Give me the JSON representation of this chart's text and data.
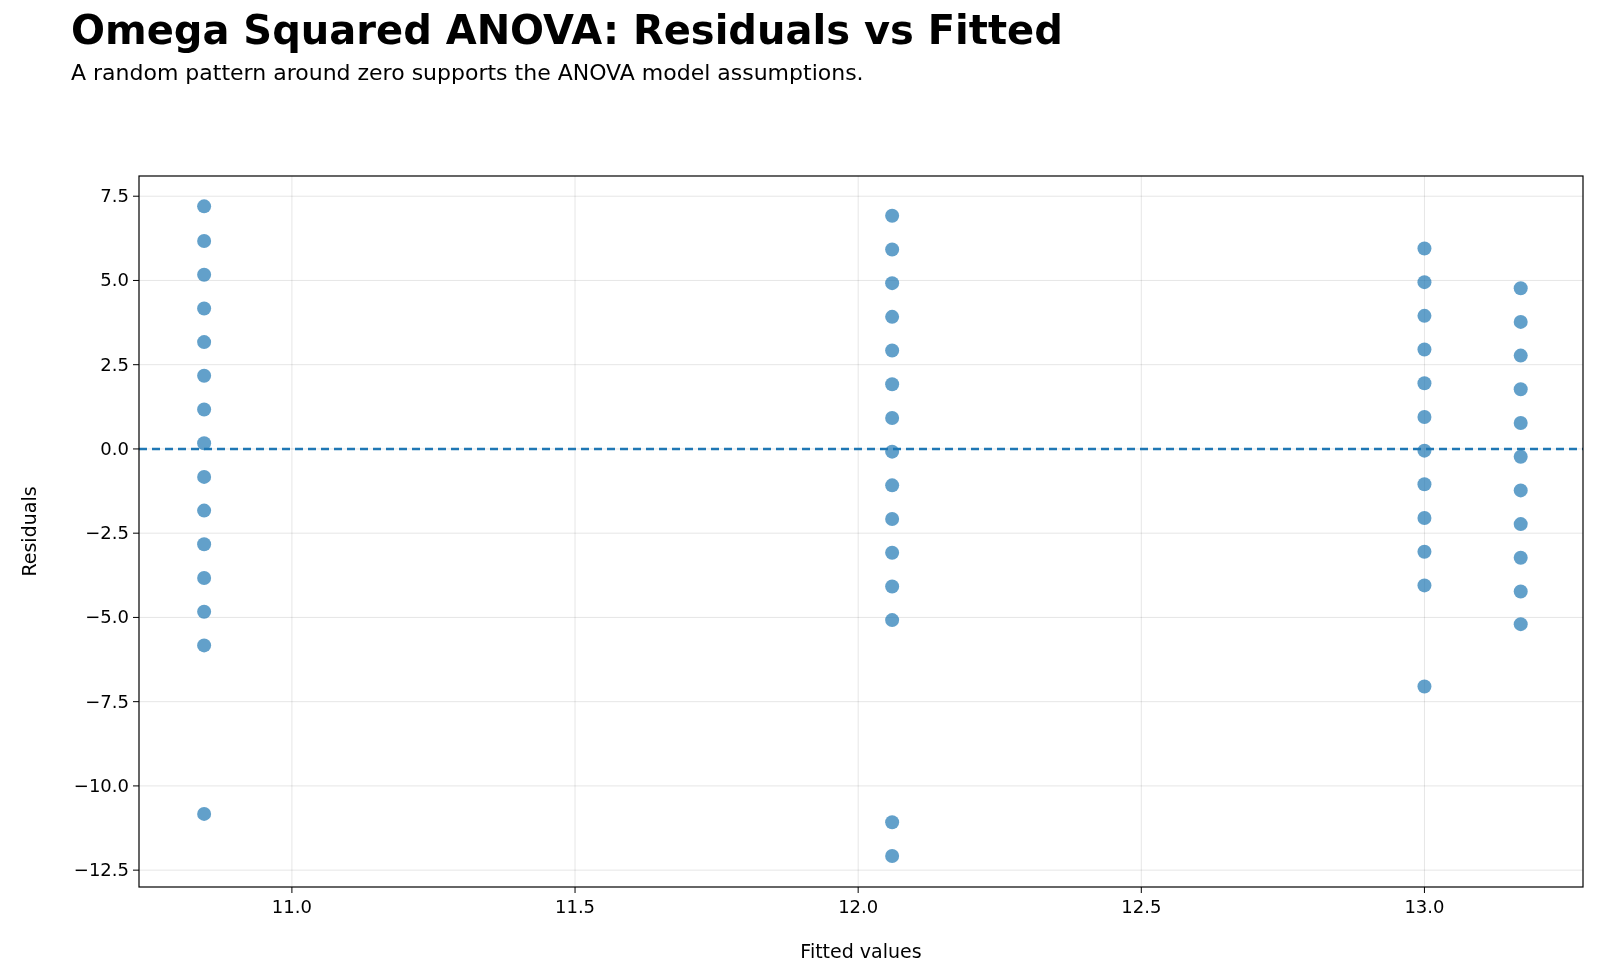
{
  "chart_data": {
    "type": "scatter",
    "title": "Omega Squared ANOVA: Residuals vs Fitted",
    "subtitle": "A random pattern around zero supports the ANOVA model assumptions.",
    "xlabel": "Fitted values",
    "ylabel": "Residuals",
    "x": [
      10.845,
      10.845,
      10.845,
      10.845,
      10.845,
      10.845,
      10.845,
      10.845,
      10.845,
      10.845,
      10.845,
      10.845,
      10.845,
      10.845,
      10.845,
      12.06,
      12.06,
      12.06,
      12.06,
      12.06,
      12.06,
      12.06,
      12.06,
      12.06,
      12.06,
      12.06,
      12.06,
      12.06,
      12.06,
      12.06,
      13.0,
      13.0,
      13.0,
      13.0,
      13.0,
      13.0,
      13.0,
      13.0,
      13.0,
      13.0,
      13.0,
      13.0,
      13.17,
      13.17,
      13.17,
      13.17,
      13.17,
      13.17,
      13.17,
      13.17,
      13.17,
      13.17,
      13.17
    ],
    "values": [
      7.2,
      6.17,
      5.17,
      4.17,
      3.17,
      2.17,
      1.17,
      0.17,
      -0.83,
      -1.83,
      -2.83,
      -3.83,
      -4.83,
      -5.83,
      -10.83,
      6.92,
      5.92,
      4.92,
      3.92,
      2.92,
      1.92,
      0.92,
      -0.08,
      -1.08,
      -2.08,
      -3.08,
      -4.08,
      -5.08,
      -11.08,
      -12.08,
      5.95,
      4.95,
      3.95,
      2.95,
      1.95,
      0.95,
      -0.05,
      -1.05,
      -2.05,
      -3.05,
      -4.05,
      -7.05,
      4.77,
      3.77,
      2.77,
      1.77,
      0.77,
      -0.23,
      -1.23,
      -2.23,
      -3.23,
      -4.23,
      -5.2
    ],
    "color": "#1f77b4",
    "marker": "circle",
    "grid": true,
    "xlim": [
      10.73,
      13.28
    ],
    "xticks": [
      {
        "value": 11,
        "label": "11.0"
      },
      {
        "value": 11.5,
        "label": "11.5"
      },
      {
        "value": 12,
        "label": "12.0"
      },
      {
        "value": 12.5,
        "label": "12.5"
      },
      {
        "value": 13,
        "label": "13.0"
      }
    ],
    "ylim": [
      -13.0,
      8.1
    ],
    "yticks": [
      {
        "value": -12.5,
        "label": "−12.5"
      },
      {
        "value": -10,
        "label": "−10.0"
      },
      {
        "value": -7.5,
        "label": "−7.5"
      },
      {
        "value": -5,
        "label": "−5.0"
      },
      {
        "value": -2.5,
        "label": "−2.5"
      },
      {
        "value": 0,
        "label": "0.0"
      },
      {
        "value": 2.5,
        "label": "2.5"
      },
      {
        "value": 5,
        "label": "5.0"
      },
      {
        "value": 7.5,
        "label": "7.5"
      }
    ],
    "ref_lines": [
      {
        "axis": "y",
        "value": 0,
        "color": "#1f77b4",
        "line_style": "dashed"
      }
    ]
  }
}
